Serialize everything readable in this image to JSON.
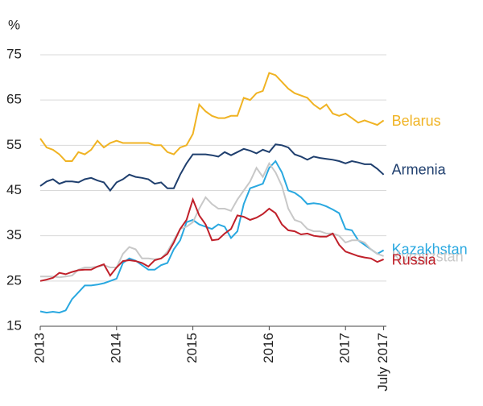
{
  "chart_data": {
    "type": "line",
    "y_label": "%",
    "categories": [
      "2013",
      null,
      null,
      null,
      null,
      null,
      null,
      null,
      null,
      null,
      null,
      null,
      "2014",
      null,
      null,
      null,
      null,
      null,
      null,
      null,
      null,
      null,
      null,
      null,
      "2015",
      null,
      null,
      null,
      null,
      null,
      null,
      null,
      null,
      null,
      null,
      null,
      "2016",
      null,
      null,
      null,
      null,
      null,
      null,
      null,
      null,
      null,
      null,
      null,
      "2017",
      null,
      null,
      null,
      null,
      null,
      "July 2017"
    ],
    "ylim": [
      15,
      75
    ],
    "yticks": [
      15,
      25,
      35,
      45,
      55,
      65,
      75
    ],
    "grid": true,
    "series": [
      {
        "name": "Belarus",
        "color": "#f0b323",
        "values": [
          56.5,
          54.5,
          54,
          53,
          51.5,
          51.5,
          53.5,
          53,
          54,
          56,
          54.5,
          55.5,
          56,
          55.5,
          55.5,
          55.5,
          55.5,
          55.5,
          55,
          55,
          53.5,
          53,
          54.5,
          55,
          57.5,
          64,
          62.5,
          61.5,
          61,
          61,
          61.5,
          61.5,
          65.5,
          65,
          66.5,
          67,
          71,
          70.5,
          69,
          67.5,
          66.5,
          66,
          65.5,
          64,
          63,
          64,
          62,
          61.5,
          62,
          61,
          60,
          60.5,
          60,
          59.5,
          60.5
        ]
      },
      {
        "name": "Armenia",
        "color": "#1f3f6e",
        "values": [
          46,
          47,
          47.5,
          46.5,
          47,
          47,
          46.8,
          47.5,
          47.8,
          47.2,
          46.8,
          45,
          46.8,
          47.5,
          48.5,
          48,
          47.8,
          47.5,
          46.5,
          46.8,
          45.5,
          45.5,
          48.5,
          51,
          53,
          53,
          53,
          52.8,
          52.5,
          53.5,
          52.8,
          53.5,
          54.2,
          53.8,
          53.2,
          54,
          53.5,
          55.2,
          55,
          54.5,
          53,
          52.5,
          51.8,
          52.5,
          52.2,
          52,
          51.8,
          51.5,
          51,
          51.5,
          51.2,
          50.8,
          50.8,
          49.8,
          48.5
        ]
      },
      {
        "name": "Kazakhstan",
        "color": "#29a8e0",
        "values": [
          18.3,
          18,
          18.2,
          18,
          18.5,
          21,
          22.5,
          24,
          24,
          24.2,
          24.5,
          25,
          25.5,
          29,
          30,
          29.5,
          28.5,
          27.5,
          27.5,
          28.5,
          29,
          32,
          34,
          38,
          38.5,
          37.5,
          37,
          36.5,
          37.5,
          37,
          34.5,
          36,
          42,
          45.5,
          46,
          46.5,
          50,
          51.5,
          49,
          45,
          44.5,
          43.5,
          42,
          42.2,
          42,
          41.5,
          40.8,
          40,
          36.5,
          36.2,
          34,
          33,
          32,
          31,
          31.8
        ]
      },
      {
        "name": "Kyrgyzstan",
        "color": "#c8c8c8",
        "values": [
          26,
          26,
          26,
          25.8,
          26,
          26.2,
          27.5,
          28,
          28,
          28.2,
          28.5,
          28,
          28,
          31,
          32.5,
          32,
          30,
          30,
          29.8,
          30,
          31.5,
          34,
          36.5,
          37,
          38,
          41,
          43.5,
          42,
          41,
          41,
          40.5,
          43,
          45,
          47,
          50,
          48,
          51,
          49,
          46,
          41,
          38.5,
          38,
          36.5,
          36,
          36,
          35.5,
          35.5,
          35,
          33.5,
          34,
          34,
          33.5,
          32,
          31,
          30.5
        ]
      },
      {
        "name": "Russia",
        "color": "#c0202a",
        "values": [
          25,
          25.3,
          25.7,
          26.8,
          26.5,
          27,
          27.4,
          27.5,
          27.5,
          28.2,
          28.7,
          26.2,
          28,
          29.4,
          29.6,
          29.4,
          29,
          28.2,
          29.6,
          30,
          31,
          33.5,
          36.5,
          38.5,
          43,
          39.5,
          37.5,
          34,
          34.2,
          35.5,
          36.5,
          39.5,
          39.2,
          38.5,
          39,
          39.8,
          41,
          40,
          37.5,
          36.2,
          36,
          35.3,
          35.5,
          35,
          34.8,
          34.8,
          35.5,
          33,
          31.5,
          31,
          30.5,
          30.2,
          30,
          29.2,
          29.8
        ]
      }
    ]
  }
}
